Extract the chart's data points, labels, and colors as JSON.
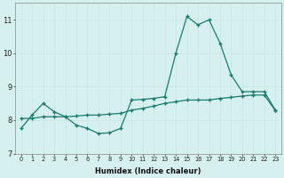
{
  "xlabel": "Humidex (Indice chaleur)",
  "bg_color": "#d6f0ef",
  "grid_color": "#c8e8e5",
  "line_color": "#1a7a6e",
  "line1_x": [
    0,
    1,
    2,
    3,
    4,
    5,
    6,
    7,
    8,
    9,
    10,
    11,
    12,
    13,
    14,
    15,
    16,
    17,
    18,
    19,
    20,
    21,
    22,
    23
  ],
  "line1_y": [
    7.75,
    8.15,
    8.5,
    8.25,
    8.1,
    7.85,
    7.75,
    7.6,
    7.62,
    7.75,
    8.6,
    8.62,
    8.65,
    8.7,
    10.0,
    11.1,
    10.85,
    11.0,
    10.3,
    9.35,
    8.85,
    8.85,
    8.85,
    8.3
  ],
  "line2_x": [
    0,
    1,
    2,
    3,
    4,
    5,
    6,
    7,
    8,
    9,
    10,
    11,
    12,
    13,
    14,
    15,
    16,
    17,
    18,
    19,
    20,
    21,
    22,
    23
  ],
  "line2_y": [
    8.05,
    8.05,
    8.1,
    8.1,
    8.1,
    8.12,
    8.15,
    8.15,
    8.18,
    8.2,
    8.3,
    8.35,
    8.42,
    8.5,
    8.55,
    8.6,
    8.6,
    8.6,
    8.65,
    8.68,
    8.72,
    8.75,
    8.75,
    8.28
  ],
  "ylim": [
    7.0,
    11.5
  ],
  "xlim": [
    -0.5,
    23.5
  ],
  "yticks": [
    7,
    8,
    9,
    10,
    11
  ],
  "xticks": [
    0,
    1,
    2,
    3,
    4,
    5,
    6,
    7,
    8,
    9,
    10,
    11,
    12,
    13,
    14,
    15,
    16,
    17,
    18,
    19,
    20,
    21,
    22,
    23
  ]
}
